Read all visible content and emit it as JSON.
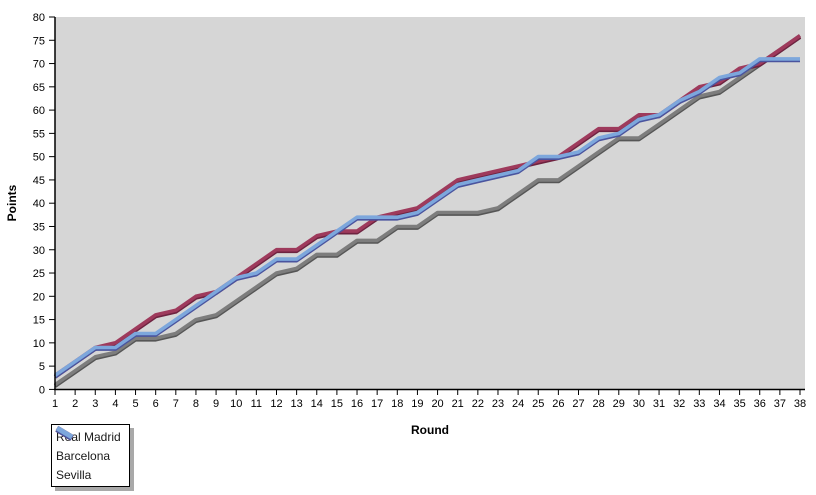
{
  "chart_data": {
    "type": "line",
    "title": "",
    "xlabel": "Round",
    "ylabel": "Points",
    "xlim": [
      1,
      38
    ],
    "ylim": [
      0,
      80
    ],
    "y_tick_step": 5,
    "x_tick_step": 1,
    "grid": "off",
    "plot_background": "#d6d6d6",
    "page_background": "#ffffff",
    "axis_color": "#000000",
    "legend_position": "bottom-left",
    "categories": [
      1,
      2,
      3,
      4,
      5,
      6,
      7,
      8,
      9,
      10,
      11,
      12,
      13,
      14,
      15,
      16,
      17,
      18,
      19,
      20,
      21,
      22,
      23,
      24,
      25,
      26,
      27,
      28,
      29,
      30,
      31,
      32,
      33,
      34,
      35,
      36,
      37,
      38
    ],
    "series": [
      {
        "name": "Real Madrid",
        "color": "#7d7d7d",
        "edge_color": "#565656",
        "values": [
          1,
          4,
          7,
          8,
          11,
          11,
          12,
          15,
          16,
          19,
          22,
          25,
          26,
          29,
          29,
          32,
          32,
          35,
          35,
          38,
          38,
          38,
          39,
          42,
          45,
          45,
          48,
          51,
          54,
          54,
          57,
          60,
          63,
          64,
          67,
          70,
          73,
          76
        ]
      },
      {
        "name": "Barcelona",
        "color": "#9e3a5c",
        "edge_color": "#6e2340",
        "values": [
          3,
          6,
          9,
          10,
          13,
          16,
          17,
          20,
          21,
          24,
          27,
          30,
          30,
          33,
          34,
          34,
          37,
          38,
          39,
          42,
          45,
          46,
          47,
          48,
          49,
          50,
          53,
          56,
          56,
          59,
          59,
          62,
          65,
          66,
          69,
          70,
          73,
          76
        ]
      },
      {
        "name": "Sevilla",
        "color": "#7da7dc",
        "edge_color": "#4a549e",
        "values": [
          3,
          6,
          9,
          9,
          12,
          12,
          15,
          18,
          21,
          24,
          25,
          28,
          28,
          31,
          34,
          37,
          37,
          37,
          38,
          41,
          44,
          45,
          46,
          47,
          50,
          50,
          51,
          54,
          55,
          58,
          59,
          62,
          64,
          67,
          68,
          71,
          71,
          71
        ]
      }
    ]
  },
  "legend": {
    "items": [
      {
        "label": "Real Madrid"
      },
      {
        "label": "Barcelona"
      },
      {
        "label": "Sevilla"
      }
    ]
  },
  "axes": {
    "x_title": "Round",
    "y_title": "Points"
  }
}
